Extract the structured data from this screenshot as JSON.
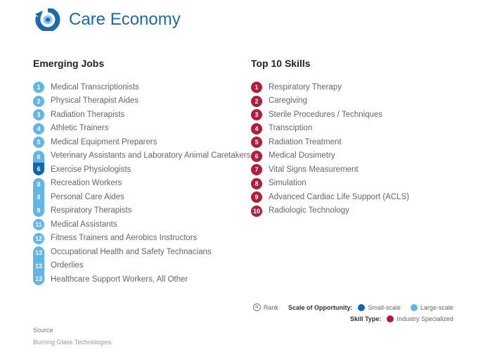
{
  "header": {
    "title": "Care Economy",
    "logo_icon": "care-economy-logo-icon",
    "accent_color": "#1c6aa8"
  },
  "emerging_jobs": {
    "title": "Emerging Jobs",
    "items": [
      {
        "rank": "1",
        "label": "Medical Transcriptionists",
        "scale": "large"
      },
      {
        "rank": "2",
        "label": "Physical Therapist Aides",
        "scale": "large"
      },
      {
        "rank": "3",
        "label": "Radiation Therapists",
        "scale": "large"
      },
      {
        "rank": "4",
        "label": "Athletic Trainers",
        "scale": "large"
      },
      {
        "rank": "5",
        "label": "Medical Equipment Preparers",
        "scale": "large"
      },
      {
        "rank": "6",
        "label": "Veterinary Assistants and Laboratory Animal Caretakers",
        "scale": "large"
      },
      {
        "rank": "6",
        "label": "Exercise Physiologists",
        "scale": "small"
      },
      {
        "rank": "8",
        "label": "Recreation Workers",
        "scale": "large"
      },
      {
        "rank": "8",
        "label": "Personal Care Aides",
        "scale": "large"
      },
      {
        "rank": "8",
        "label": "Respiratory Therapists",
        "scale": "large"
      },
      {
        "rank": "11",
        "label": "Medical Assistants",
        "scale": "large"
      },
      {
        "rank": "12",
        "label": "Fitness Trainers and Aerobics Instructors",
        "scale": "large"
      },
      {
        "rank": "13",
        "label": "Occupational Health and Safety Technacians",
        "scale": "large"
      },
      {
        "rank": "13",
        "label": "Orderlies",
        "scale": "large"
      },
      {
        "rank": "13",
        "label": "Healthcare Support Workers, All Other",
        "scale": "large"
      }
    ]
  },
  "top_skills": {
    "title": "Top 10 Skills",
    "items": [
      {
        "rank": "1",
        "label": "Respiratory Therapy"
      },
      {
        "rank": "2",
        "label": "Caregiving"
      },
      {
        "rank": "3",
        "label": "Sterile Procedures / Techniques"
      },
      {
        "rank": "4",
        "label": "Transciption"
      },
      {
        "rank": "5",
        "label": "Radiation Treatment"
      },
      {
        "rank": "6",
        "label": "Medical Dosimetry"
      },
      {
        "rank": "7",
        "label": "Vital Signs Measurement"
      },
      {
        "rank": "8",
        "label": "Simulation"
      },
      {
        "rank": "9",
        "label": "Advanced Cardiac Life Support (ACLS)"
      },
      {
        "rank": "10",
        "label": "Radiologic Technology"
      }
    ]
  },
  "legend": {
    "rank_symbol": "N",
    "rank_label": "Rank",
    "scale_title": "Scale of Opportunity:",
    "small_scale_label": "Small-scale",
    "large_scale_label": "Large-scale",
    "skill_type_title": "Skill Type:",
    "industry_label": "Industry Specialized",
    "colors": {
      "small_scale": "#0f67ad",
      "large_scale": "#62b6e6",
      "industry_specialized": "#b01f3a"
    }
  },
  "source": {
    "title": "Source",
    "text": "Burning Glass Technologies."
  }
}
